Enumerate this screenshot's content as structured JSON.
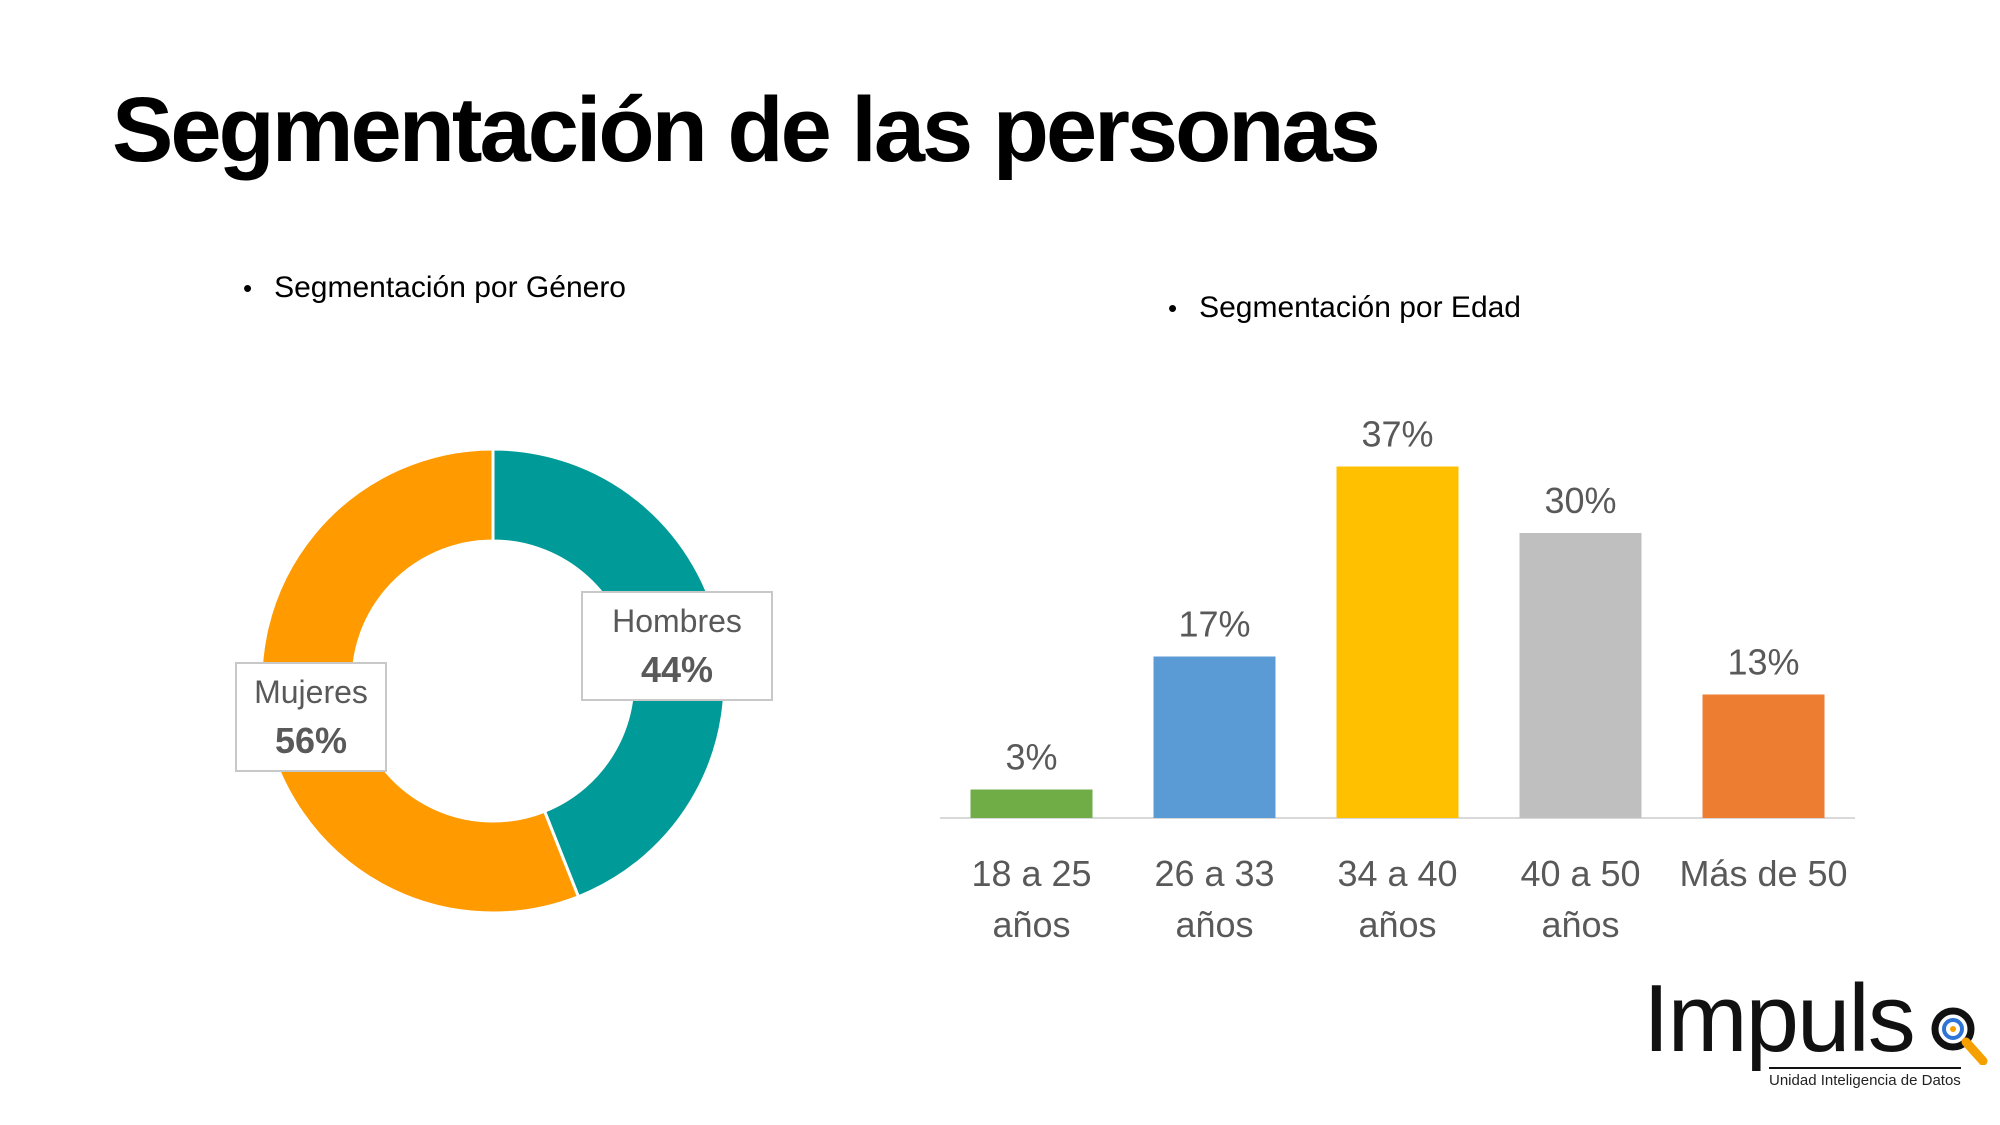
{
  "page": {
    "title": "Segmentación de las personas"
  },
  "gender_section": {
    "heading": "Segmentación por Género",
    "bullet": "•"
  },
  "age_section": {
    "heading": "Segmentación por Edad",
    "bullet": "•"
  },
  "logo": {
    "name": "Impuls",
    "tagline": "Unidad Inteligencia de Datos"
  },
  "colors": {
    "hombres": "#009B98",
    "mujeres": "#FF9A00",
    "bar_18_25": "#70AD47",
    "bar_26_33": "#5B9BD5",
    "bar_34_40": "#FFC000",
    "bar_40_50": "#BFBFBF",
    "bar_mas_50": "#ED7D31",
    "label_gray": "#595959"
  },
  "chart_data": [
    {
      "type": "pie",
      "variant": "doughnut",
      "title": "Segmentación por Género",
      "slices": [
        {
          "label": "Hombres",
          "value": 44,
          "display": "44%",
          "color": "#009B98"
        },
        {
          "label": "Mujeres",
          "value": 56,
          "display": "56%",
          "color": "#FF9A00"
        }
      ],
      "legend": "none"
    },
    {
      "type": "bar",
      "title": "Segmentación por Edad",
      "categories": [
        [
          "18 a 25",
          "años"
        ],
        [
          "26 a 33",
          "años"
        ],
        [
          "34 a 40",
          "años"
        ],
        [
          "40 a 50",
          "años"
        ],
        [
          "Más de 50"
        ]
      ],
      "values": [
        3,
        17,
        37,
        30,
        13
      ],
      "labels": [
        "3%",
        "17%",
        "37%",
        "30%",
        "13%"
      ],
      "colors": [
        "#70AD47",
        "#5B9BD5",
        "#FFC000",
        "#BFBFBF",
        "#ED7D31"
      ],
      "ylim": [
        0,
        40
      ],
      "grid": false,
      "legend": "none"
    }
  ]
}
